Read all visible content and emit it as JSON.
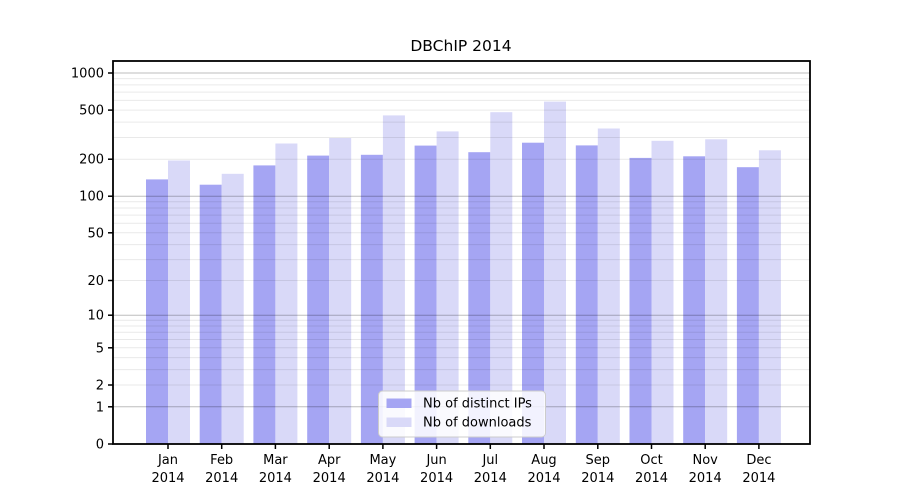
{
  "chart_data": {
    "type": "bar",
    "title": "DBChIP 2014",
    "categories": [
      "Jan",
      "Feb",
      "Mar",
      "Apr",
      "May",
      "Jun",
      "Jul",
      "Aug",
      "Sep",
      "Oct",
      "Nov",
      "Dec"
    ],
    "category_year": "2014",
    "series": [
      {
        "name": "Nb of distinct IPs",
        "color": "#a5a5f3",
        "values": [
          137,
          124,
          178,
          214,
          217,
          258,
          228,
          272,
          259,
          205,
          211,
          172
        ]
      },
      {
        "name": "Nb of downloads",
        "color": "#d9d9f8",
        "values": [
          195,
          152,
          268,
          297,
          453,
          336,
          481,
          586,
          355,
          282,
          290,
          236
        ]
      }
    ],
    "yscale": "log1p",
    "ylim": [
      0,
      1250
    ],
    "yticks": [
      1000,
      500,
      200,
      100,
      50,
      20,
      10,
      5,
      2,
      1,
      0
    ],
    "ytick_labels": [
      "1000",
      "500",
      "200",
      "100",
      "50",
      "20",
      "10",
      "5",
      "2",
      "1",
      "0"
    ],
    "grid": {
      "minor_values": [
        2,
        3,
        4,
        5,
        6,
        7,
        8,
        9,
        20,
        30,
        40,
        50,
        60,
        70,
        80,
        90,
        200,
        300,
        400,
        500,
        600,
        700,
        800,
        900
      ],
      "major_values": [
        1,
        10,
        100,
        1000
      ],
      "minor_color": "rgba(0,0,0,0.085)",
      "major_color": "rgba(0,0,0,0.26)"
    },
    "legend_position": "bottom-center",
    "axis_color": "#000000"
  }
}
